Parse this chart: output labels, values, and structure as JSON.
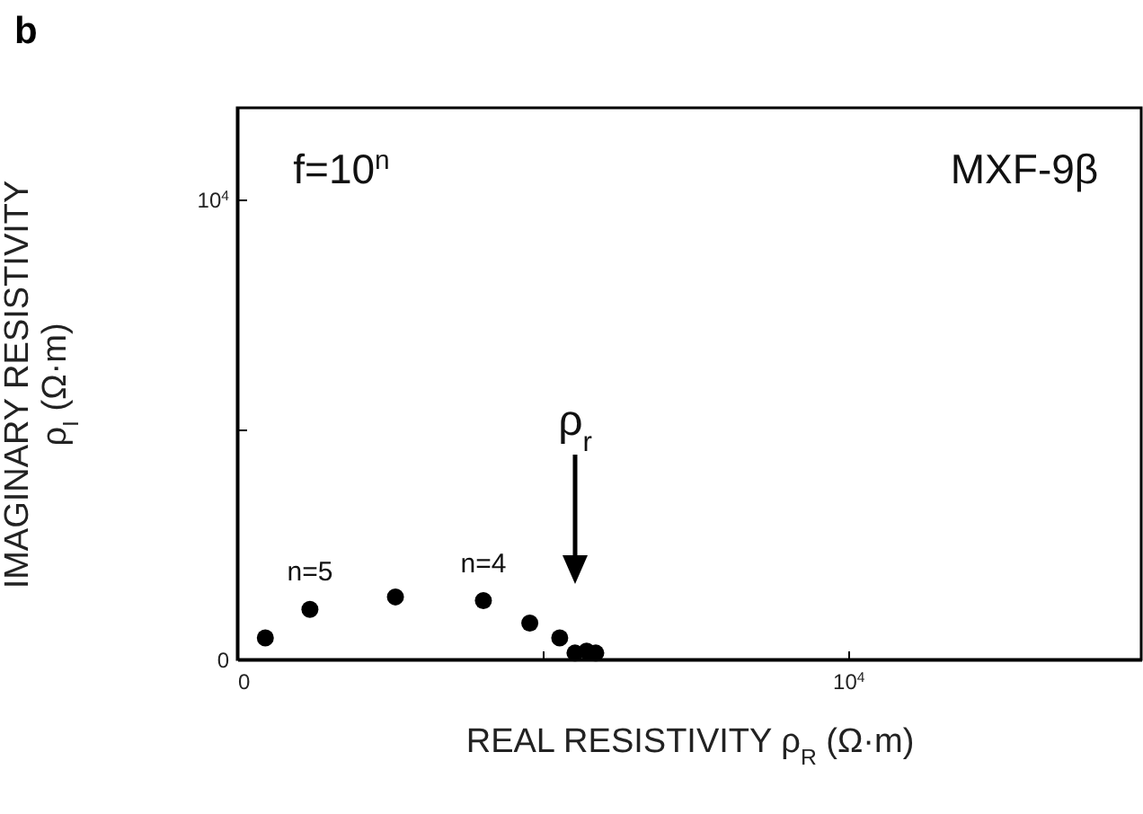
{
  "chart_data": {
    "type": "scatter",
    "title": "b",
    "xlabel": "REAL RESISTIVITY ρ$_{R}$ (Ω·m)",
    "ylabel": "IMAGINARY RESISTIVITY\nρ$_{I}$ (Ω·m)",
    "series": [
      {
        "color": "#000000",
        "x": [
          460,
          1190,
          2590,
          4030,
          4790,
          5280,
          5530,
          5720,
          5870
        ],
        "values": [
          470,
          1090,
          1360,
          1280,
          790,
          470,
          140,
          180,
          140
        ]
      }
    ],
    "xlim": [
      0,
      14800
    ],
    "ylim": [
      0,
      12000
    ],
    "xticks": [
      0,
      {
        "value": 5000,
        "label": null
      },
      {
        "value": 10000,
        "label": "10$^{4}$"
      }
    ],
    "yticks": [
      0,
      {
        "value": 5000,
        "label": null
      },
      {
        "value": 10000,
        "label": "10$^{4}$"
      }
    ],
    "annotations": [
      "f=10$^{n}$",
      "MXF-9β",
      {
        "text": "n=5",
        "x": 1190,
        "y": 1090
      },
      {
        "text": "n=4",
        "x": 4030,
        "y": 1280
      },
      "ρ$_{r}$"
    ],
    "grid": false,
    "marker": "circle"
  }
}
